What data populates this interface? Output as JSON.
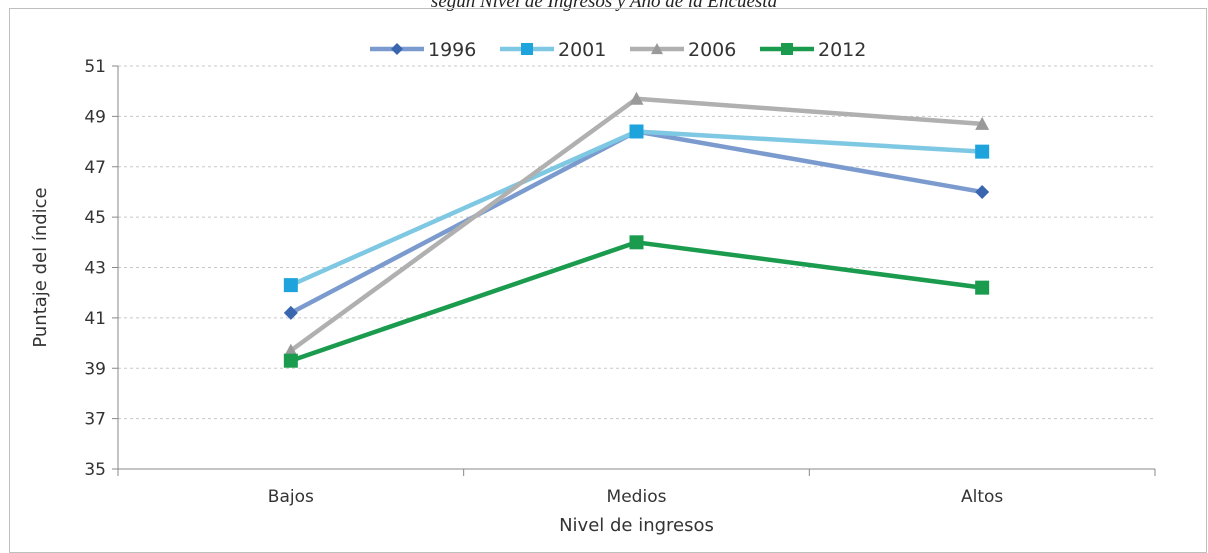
{
  "page": {
    "subtitle": "según Nivel de Ingresos y Año de la Encuesta"
  },
  "chart_data": {
    "type": "line",
    "title": "",
    "subtitle": "según Nivel de Ingresos y Año de la Encuesta",
    "xlabel": "Nivel de ingresos",
    "ylabel": "Puntaje del índice",
    "categories": [
      "Bajos",
      "Medios",
      "Altos"
    ],
    "ylim": [
      35,
      51
    ],
    "yticks": [
      35,
      37,
      39,
      41,
      43,
      45,
      47,
      49,
      51
    ],
    "grid": true,
    "legend_position": "top",
    "series": [
      {
        "name": "1996",
        "values": [
          41.2,
          48.4,
          46.0
        ],
        "color": "#7b9bcf",
        "marker": "diamond",
        "marker_color": "#3a66b0"
      },
      {
        "name": "2001",
        "values": [
          42.3,
          48.4,
          47.6
        ],
        "color": "#7ec8e3",
        "marker": "square",
        "marker_color": "#1fa3dc"
      },
      {
        "name": "2006",
        "values": [
          39.7,
          49.7,
          48.7
        ],
        "color": "#b0b0b0",
        "marker": "triangle",
        "marker_color": "#9a9a9a"
      },
      {
        "name": "2012",
        "values": [
          39.3,
          44.0,
          42.2
        ],
        "color": "#1a9b4e",
        "marker": "square",
        "marker_color": "#1a9b4e"
      }
    ]
  }
}
